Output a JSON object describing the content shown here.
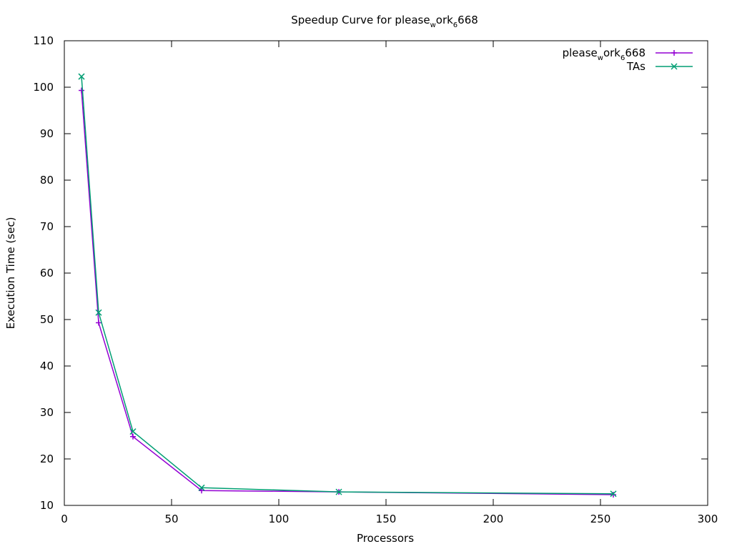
{
  "chart_data": {
    "type": "line",
    "title": "Speedup Curve for please_work_6668",
    "title_parts": {
      "base": "Speedup Curve for please",
      "sub1": "w",
      "mid": "ork",
      "sub2": "6",
      "tail": "668"
    },
    "xlabel": "Processors",
    "ylabel": "Execution Time (sec)",
    "xlim": [
      0,
      300
    ],
    "ylim": [
      10,
      110
    ],
    "xticks": [
      0,
      50,
      100,
      150,
      200,
      250,
      300
    ],
    "yticks": [
      10,
      20,
      30,
      40,
      50,
      60,
      70,
      80,
      90,
      100,
      110
    ],
    "grid": false,
    "legend_position": "top-right",
    "series": [
      {
        "name": "please_work_6668",
        "legend_parts": {
          "base": "please",
          "sub1": "w",
          "mid": "ork",
          "sub2": "6",
          "tail": "668"
        },
        "color": "#9400d3",
        "marker": "plus",
        "x": [
          8,
          16,
          32,
          64,
          128,
          256
        ],
        "y": [
          99.3,
          49.3,
          24.8,
          13.2,
          12.9,
          12.3
        ]
      },
      {
        "name": "TAs",
        "legend_parts": {
          "base": "TAs"
        },
        "color": "#009e73",
        "marker": "cross",
        "x": [
          8,
          16,
          32,
          64,
          128,
          256
        ],
        "y": [
          102.3,
          51.5,
          25.9,
          13.8,
          12.9,
          12.5
        ]
      }
    ]
  }
}
